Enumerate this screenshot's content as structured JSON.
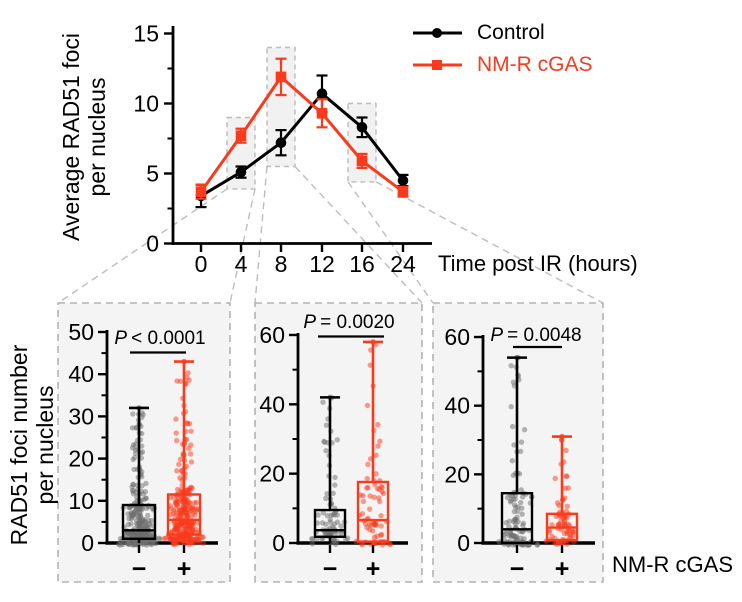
{
  "colors": {
    "control": "#000000",
    "nmr_cgas": "#fa3a1c",
    "scatter_gray": "#6e6e6e",
    "panel_background": "#f4f4f4",
    "dashed_border": "#b3b3b3",
    "highlight_fill": "#f1f1f1",
    "connector": "#bdbdbd"
  },
  "chart_data": [
    {
      "type": "line",
      "title": "",
      "ylabel": "Average RAD51 foci per nucleus",
      "ylabel_lines": [
        "Average RAD51 foci",
        "per nucleus"
      ],
      "xlabel": "Time post IR (hours)",
      "x_tick_labels": [
        "0",
        "4",
        "8",
        "12",
        "16",
        "24"
      ],
      "y_ticks": [
        0,
        5,
        10,
        15
      ],
      "y_minor_ticks": [
        2.5,
        7.5,
        12.5
      ],
      "ylim": [
        0,
        15
      ],
      "grid": false,
      "legend_position": "top-right",
      "series": [
        {
          "name": "Control",
          "color": "#000000",
          "marker": "circle",
          "values": [
            3.4,
            5.1,
            7.2,
            10.7,
            8.3,
            4.5
          ],
          "errors": [
            0.8,
            0.4,
            0.9,
            1.3,
            0.7,
            0.4
          ]
        },
        {
          "name": "NM-R cGAS",
          "color": "#fa3a1c",
          "marker": "square",
          "values": [
            3.7,
            7.7,
            11.9,
            9.3,
            5.9,
            3.7
          ],
          "errors": [
            0.5,
            0.5,
            1.3,
            1.0,
            0.5,
            0.35
          ]
        }
      ],
      "highlighted_timepoints": [
        {
          "x_index": 1,
          "x_label": "4",
          "y_min": 3.9,
          "y_max": 9.0
        },
        {
          "x_index": 2,
          "x_label": "8",
          "y_min": 5.5,
          "y_max": 14.0
        },
        {
          "x_index": 4,
          "x_label": "16",
          "y_min": 4.4,
          "y_max": 10.0
        }
      ]
    },
    {
      "type": "box",
      "ylabel": "RAD51 foci number per nucleus",
      "ylabel_lines": [
        "RAD51 foci number",
        "per nucleus"
      ],
      "group_axis_label": "NM-R cGAS",
      "panels": [
        {
          "source_timepoint": "4",
          "p_value": {
            "symbol": "P",
            "rest": "< 0.0001"
          },
          "y_ticks": [
            0,
            10,
            20,
            30,
            40,
            50
          ],
          "y_minor_ticks": [
            5,
            15,
            25,
            35,
            45
          ],
          "ylim": [
            0,
            50
          ],
          "groups": [
            {
              "label": "−",
              "condition": "-",
              "color": "#000000",
              "whisker_low": 0,
              "q1": 1,
              "median": 3,
              "q3": 9,
              "whisker_high": 32,
              "n_scatter": 300
            },
            {
              "label": "+",
              "condition": "+",
              "color": "#fa3a1c",
              "whisker_low": 0,
              "q1": 2,
              "median": 5.5,
              "q3": 11.5,
              "whisker_high": 43,
              "n_scatter": 310
            }
          ]
        },
        {
          "source_timepoint": "8",
          "p_value": {
            "symbol": "P",
            "rest": "= 0.0020"
          },
          "y_ticks": [
            0,
            20,
            40,
            60
          ],
          "y_minor_ticks": [
            10,
            30,
            50
          ],
          "ylim": [
            0,
            60
          ],
          "groups": [
            {
              "label": "−",
              "condition": "-",
              "color": "#000000",
              "whisker_low": 0,
              "q1": 1.8,
              "median": 3.7,
              "q3": 9.5,
              "whisker_high": 42,
              "n_scatter": 80
            },
            {
              "label": "+",
              "condition": "+",
              "color": "#fa3a1c",
              "whisker_low": 0,
              "q1": 0.4,
              "median": 6.6,
              "q3": 17.6,
              "whisker_high": 58,
              "n_scatter": 75
            }
          ]
        },
        {
          "source_timepoint": "16",
          "p_value": {
            "symbol": "P",
            "rest": "= 0.0048"
          },
          "y_ticks": [
            0,
            20,
            40,
            60
          ],
          "y_minor_ticks": [
            10,
            30,
            50
          ],
          "ylim": [
            0,
            60
          ],
          "groups": [
            {
              "label": "−",
              "condition": "-",
              "color": "#000000",
              "whisker_low": 0,
              "q1": 0,
              "median": 4,
              "q3": 14.5,
              "whisker_high": 54,
              "n_scatter": 115
            },
            {
              "label": "+",
              "condition": "+",
              "color": "#fa3a1c",
              "whisker_low": 0,
              "q1": 0.8,
              "median": 4.5,
              "q3": 8.5,
              "whisker_high": 31,
              "n_scatter": 75
            }
          ]
        }
      ]
    }
  ]
}
